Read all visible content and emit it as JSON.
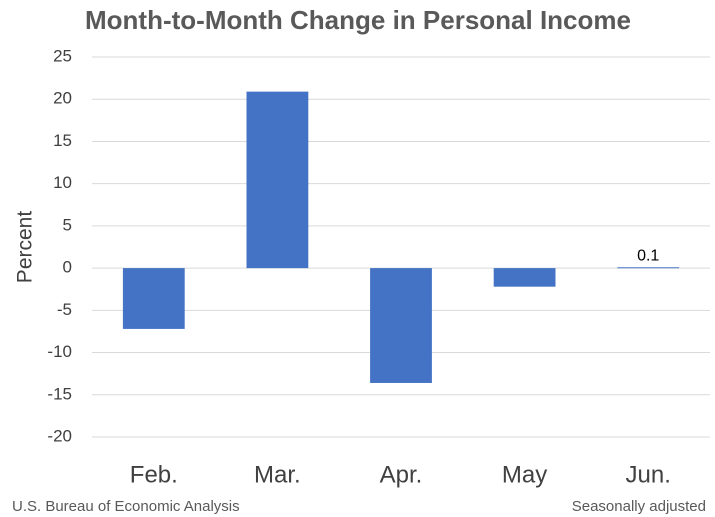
{
  "chart_data": {
    "type": "bar",
    "title": "Month-to-Month Change in Personal Income",
    "y_label": "Percent",
    "source": "U.S. Bureau of Economic Analysis",
    "note": "Seasonally adjusted",
    "categories": [
      "Feb.",
      "Mar.",
      "Apr.",
      "May",
      "Jun."
    ],
    "values": [
      -7.2,
      20.9,
      -13.6,
      -2.2,
      0.1
    ],
    "value_labels": [
      null,
      null,
      null,
      null,
      "0.1"
    ],
    "color": "#4472c4",
    "ylim": [
      -20,
      25
    ],
    "yticks": [
      -20,
      -15,
      -10,
      -5,
      0,
      5,
      10,
      15,
      20,
      25
    ],
    "grid": true
  }
}
